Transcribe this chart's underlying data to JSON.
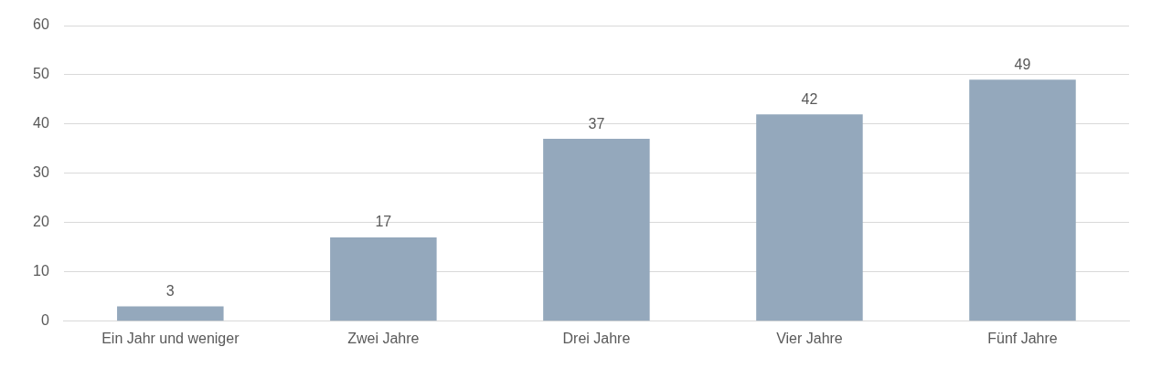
{
  "chart_data": {
    "type": "bar",
    "categories": [
      "Ein Jahr und weniger",
      "Zwei Jahre",
      "Drei Jahre",
      "Vier Jahre",
      "Fünf Jahre"
    ],
    "values": [
      3,
      17,
      37,
      42,
      49
    ],
    "color": "#94a8bc",
    "ylim": [
      0,
      60
    ],
    "yticks": [
      0,
      10,
      20,
      30,
      40,
      50,
      60
    ],
    "grid": "y",
    "data_labels": true
  }
}
